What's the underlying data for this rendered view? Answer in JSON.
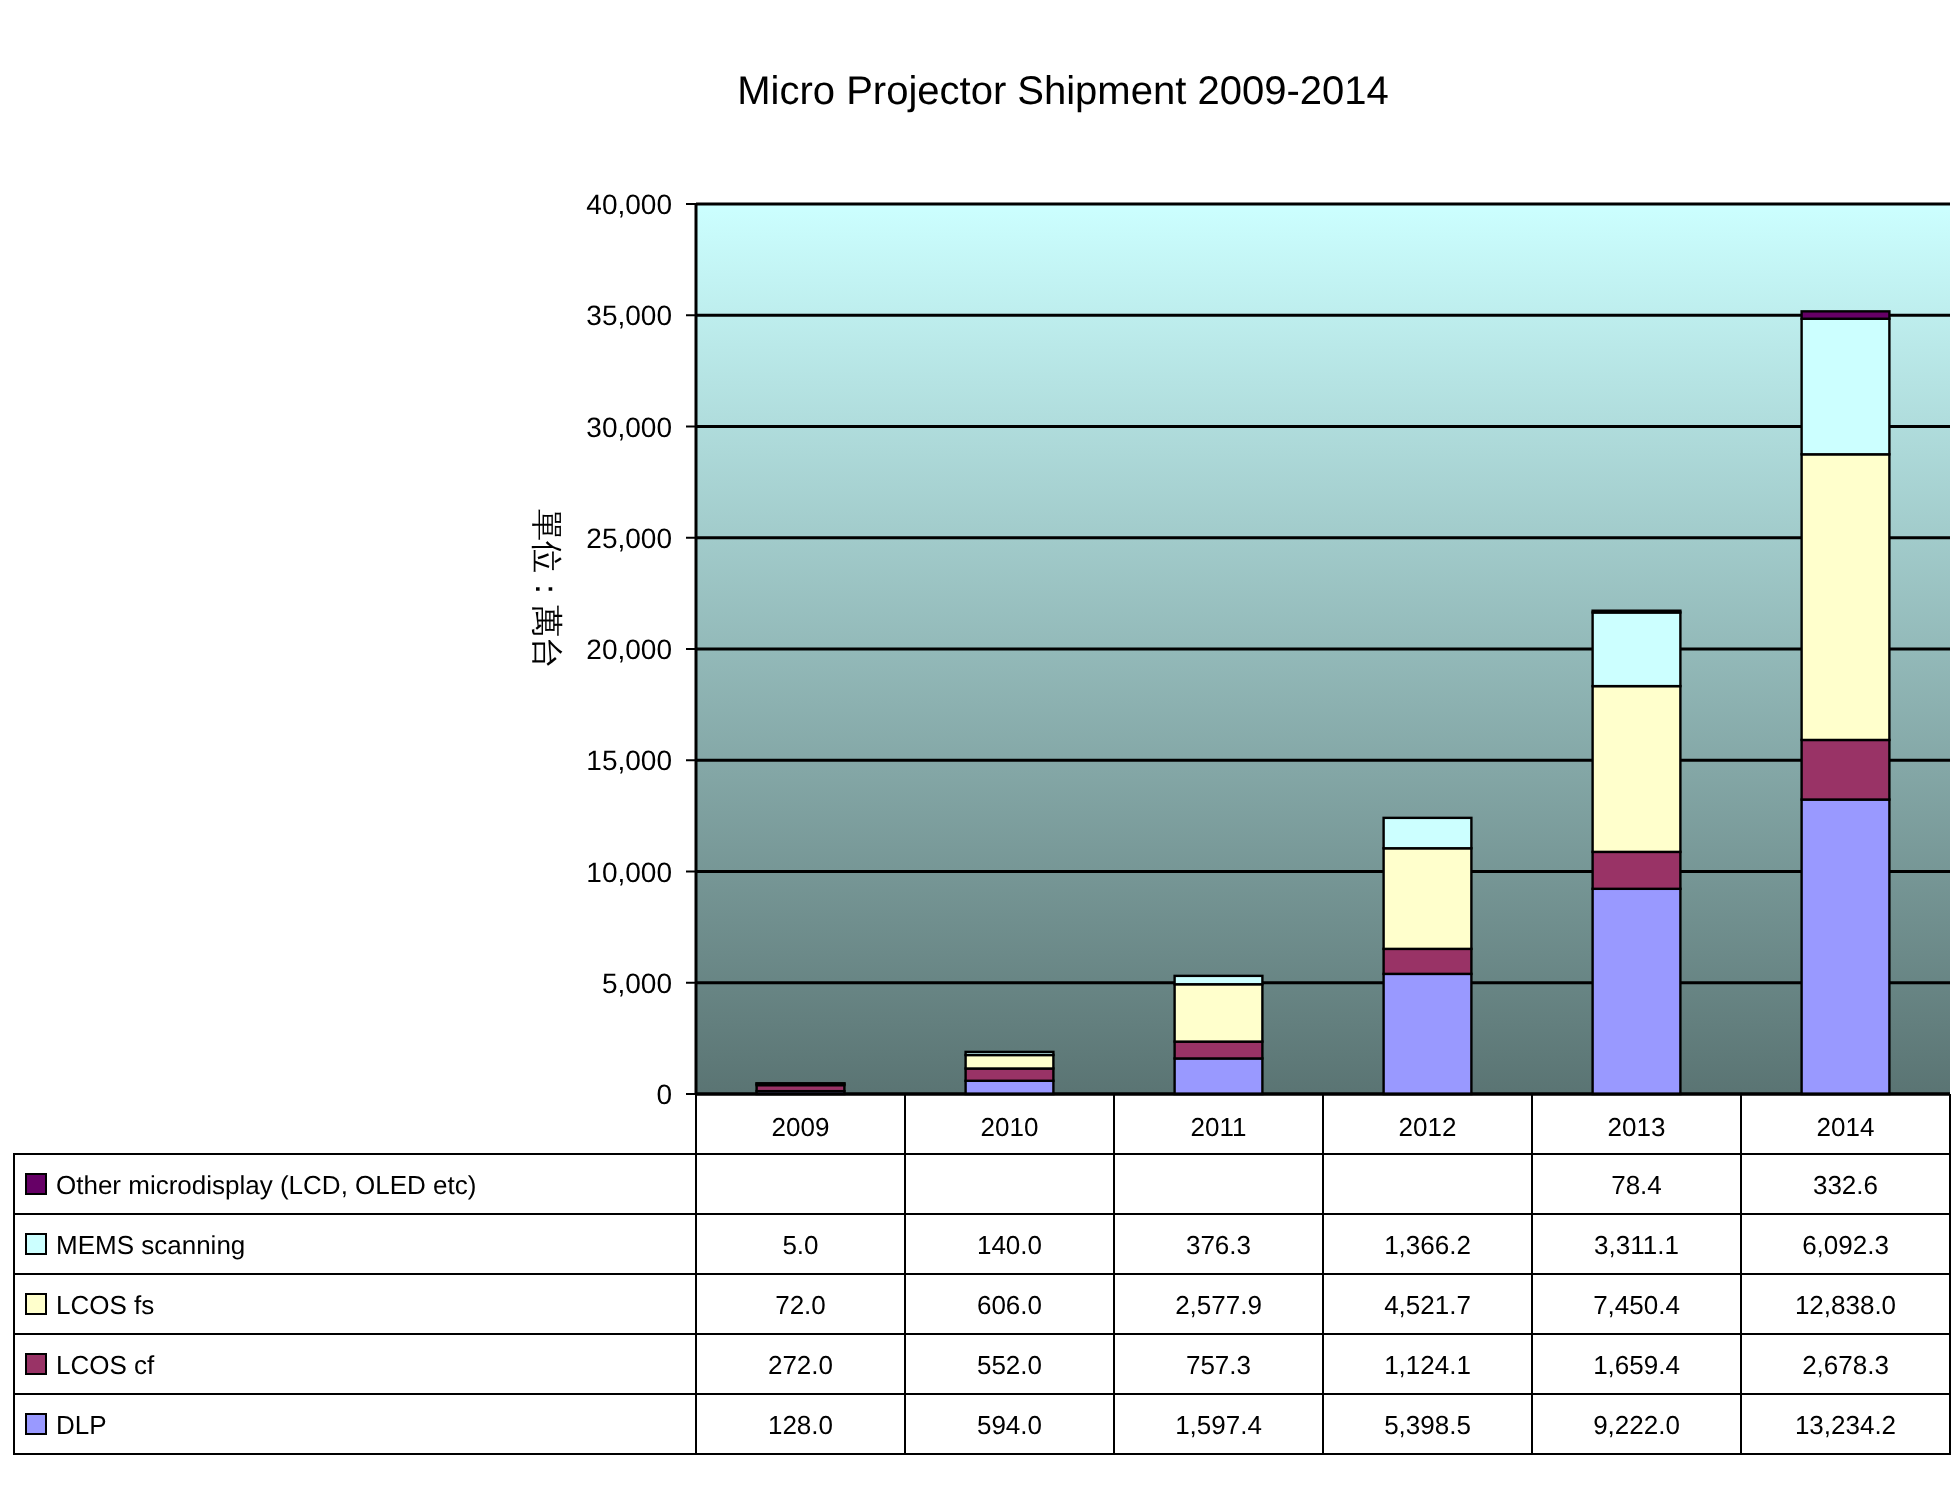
{
  "chart_data": {
    "type": "bar",
    "title": "Micro Projector Shipment 2009-2014",
    "ylabel": "單位：萬台",
    "categories": [
      "2009",
      "2010",
      "2011",
      "2012",
      "2013",
      "2014"
    ],
    "stacked": true,
    "ylim": [
      0,
      40000
    ],
    "yticks": [
      {
        "value": 0,
        "label": "0"
      },
      {
        "value": 5000,
        "label": "5,000"
      },
      {
        "value": 10000,
        "label": "10,000"
      },
      {
        "value": 15000,
        "label": "15,000"
      },
      {
        "value": 20000,
        "label": "20,000"
      },
      {
        "value": 25000,
        "label": "25,000"
      },
      {
        "value": 30000,
        "label": "30,000"
      },
      {
        "value": 35000,
        "label": "35,000"
      },
      {
        "value": 40000,
        "label": "40,000"
      }
    ],
    "grid": "y",
    "legend": "bottom",
    "series": [
      {
        "name": "DLP",
        "color": "#9999ff",
        "values": [
          128.0,
          594.0,
          1597.4,
          5398.5,
          9222.0,
          13234.2
        ],
        "value_labels": [
          "128.0",
          "594.0",
          "1,597.4",
          "5,398.5",
          "9,222.0",
          "13,234.2"
        ]
      },
      {
        "name": "LCOS cf",
        "color": "#993366",
        "values": [
          272.0,
          552.0,
          757.3,
          1124.1,
          1659.4,
          2678.3
        ],
        "value_labels": [
          "272.0",
          "552.0",
          "757.3",
          "1,124.1",
          "1,659.4",
          "2,678.3"
        ]
      },
      {
        "name": "LCOS fs",
        "color": "#ffffcc",
        "values": [
          72.0,
          606.0,
          2577.9,
          4521.7,
          7450.4,
          12838.0
        ],
        "value_labels": [
          "72.0",
          "606.0",
          "2,577.9",
          "4,521.7",
          "7,450.4",
          "12,838.0"
        ]
      },
      {
        "name": "MEMS scanning",
        "color": "#ccffff",
        "values": [
          5.0,
          140.0,
          376.3,
          1366.2,
          3311.1,
          6092.3
        ],
        "value_labels": [
          "5.0",
          "140.0",
          "376.3",
          "1,366.2",
          "3,311.1",
          "6,092.3"
        ]
      },
      {
        "name": "Other microdisplay (LCD, OLED etc)",
        "color": "#660066",
        "values": [
          null,
          null,
          null,
          null,
          78.4,
          332.6
        ],
        "value_labels": [
          null,
          null,
          null,
          null,
          "78.4",
          "332.6"
        ]
      }
    ]
  }
}
